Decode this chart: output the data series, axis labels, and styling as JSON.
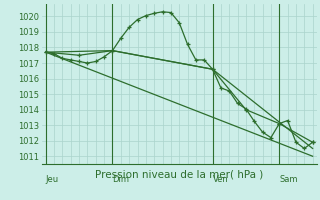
{
  "xlabel": "Pression niveau de la mer( hPa )",
  "background_color": "#cceee8",
  "grid_color": "#aad4cc",
  "line_color": "#2d6e2d",
  "text_color": "#2d6e2d",
  "ylim": [
    1010.5,
    1020.8
  ],
  "yticks": [
    1011,
    1012,
    1013,
    1014,
    1015,
    1016,
    1017,
    1018,
    1019,
    1020
  ],
  "day_labels": [
    "Jeu",
    "Dim",
    "Ven",
    "Sam"
  ],
  "day_positions": [
    0,
    8,
    20,
    28
  ],
  "xlim": [
    -0.5,
    32.5
  ],
  "series1_x": [
    0,
    1,
    2,
    3,
    4,
    5,
    6,
    7,
    8,
    9,
    10,
    11,
    12,
    13,
    14,
    15,
    16,
    17,
    18,
    19,
    20,
    21,
    22,
    23,
    24,
    25,
    26,
    27,
    28,
    29,
    30,
    31,
    32
  ],
  "series1_y": [
    1017.7,
    1017.6,
    1017.3,
    1017.2,
    1017.1,
    1017.0,
    1017.1,
    1017.4,
    1017.8,
    1018.6,
    1019.3,
    1019.8,
    1020.05,
    1020.2,
    1020.3,
    1020.25,
    1019.6,
    1018.2,
    1017.2,
    1017.2,
    1016.6,
    1015.4,
    1015.2,
    1014.4,
    1014.05,
    1013.25,
    1012.55,
    1012.2,
    1013.1,
    1013.3,
    1011.9,
    1011.5,
    1011.9
  ],
  "series2_x": [
    0,
    4,
    8,
    20,
    24,
    28,
    32
  ],
  "series2_y": [
    1017.7,
    1017.5,
    1017.8,
    1016.6,
    1014.0,
    1013.1,
    1011.9
  ],
  "series3_x": [
    0,
    32
  ],
  "series3_y": [
    1017.7,
    1011.0
  ],
  "series4_x": [
    0,
    8,
    20,
    32
  ],
  "series4_y": [
    1017.7,
    1017.8,
    1016.6,
    1011.5
  ],
  "marker_size": 3.0,
  "line_width": 0.9,
  "fontsize_tick": 6.0,
  "fontsize_xlabel": 7.5
}
